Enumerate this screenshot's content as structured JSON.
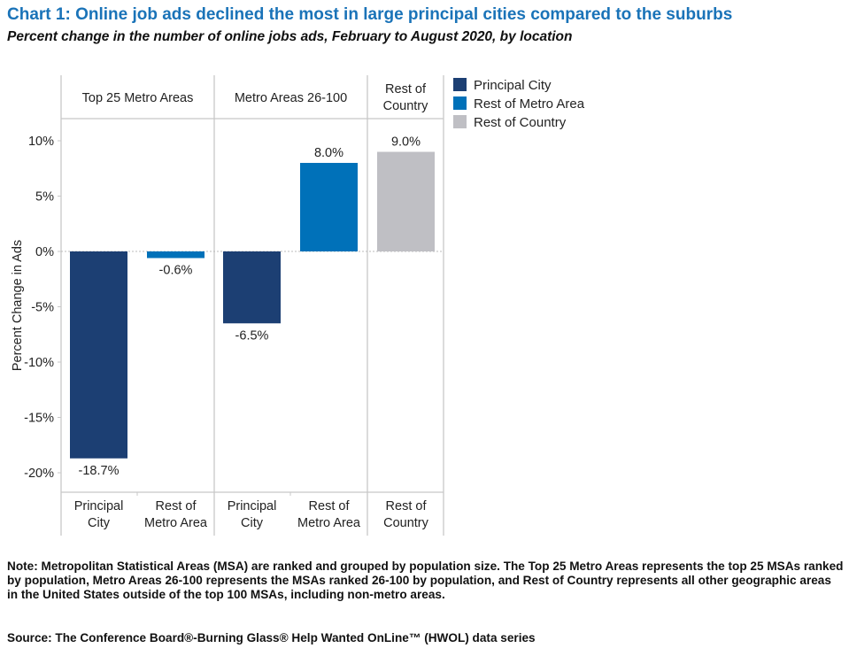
{
  "title": "Chart 1: Online job ads declined the most in large principal cities compared to the suburbs",
  "subtitle": "Percent change in the number of online jobs ads, February to August 2020, by location",
  "note": "Note: Metropolitan Statistical Areas (MSA) are ranked and grouped by population size. The Top 25 Metro Areas represents the top 25 MSAs ranked by population, Metro Areas 26-100 represents the MSAs ranked 26-100 by population, and Rest of Country represents all other geographic areas in the United States outside of the top 100 MSAs, including non-metro areas.",
  "source": "Source: The Conference Board®-Burning Glass® Help Wanted OnLine™ (HWOL) data series",
  "chart_data": {
    "type": "bar",
    "ylabel": "Percent Change in Ads",
    "ylim": [
      -20,
      10
    ],
    "yticks": [
      "10%",
      "5%",
      "0%",
      "-5%",
      "-10%",
      "-15%",
      "-20%"
    ],
    "ytick_values": [
      10,
      5,
      0,
      -5,
      -10,
      -15,
      -20
    ],
    "legend_position": "right",
    "legend": [
      {
        "name": "Principal City",
        "color": "#1c3f73"
      },
      {
        "name": "Rest of Metro Area",
        "color": "#0071b9"
      },
      {
        "name": "Rest of Country",
        "color": "#bfbfc4"
      }
    ],
    "panels": [
      {
        "label": [
          "Top 25 Metro Areas"
        ],
        "bars": [
          {
            "category": [
              "Principal",
              "City"
            ],
            "value": -18.7,
            "label": "-18.7%",
            "series": 0
          },
          {
            "category": [
              "Rest of",
              "Metro Area"
            ],
            "value": -0.6,
            "label": "-0.6%",
            "series": 1
          }
        ]
      },
      {
        "label": [
          "Metro Areas 26-100"
        ],
        "bars": [
          {
            "category": [
              "Principal",
              "City"
            ],
            "value": -6.5,
            "label": "-6.5%",
            "series": 0
          },
          {
            "category": [
              "Rest of",
              "Metro Area"
            ],
            "value": 8.0,
            "label": "8.0%",
            "series": 1
          }
        ]
      },
      {
        "label": [
          "Rest of",
          "Country"
        ],
        "bars": [
          {
            "category": [
              "Rest of",
              "Country"
            ],
            "value": 9.0,
            "label": "9.0%",
            "series": 2
          }
        ]
      }
    ]
  }
}
